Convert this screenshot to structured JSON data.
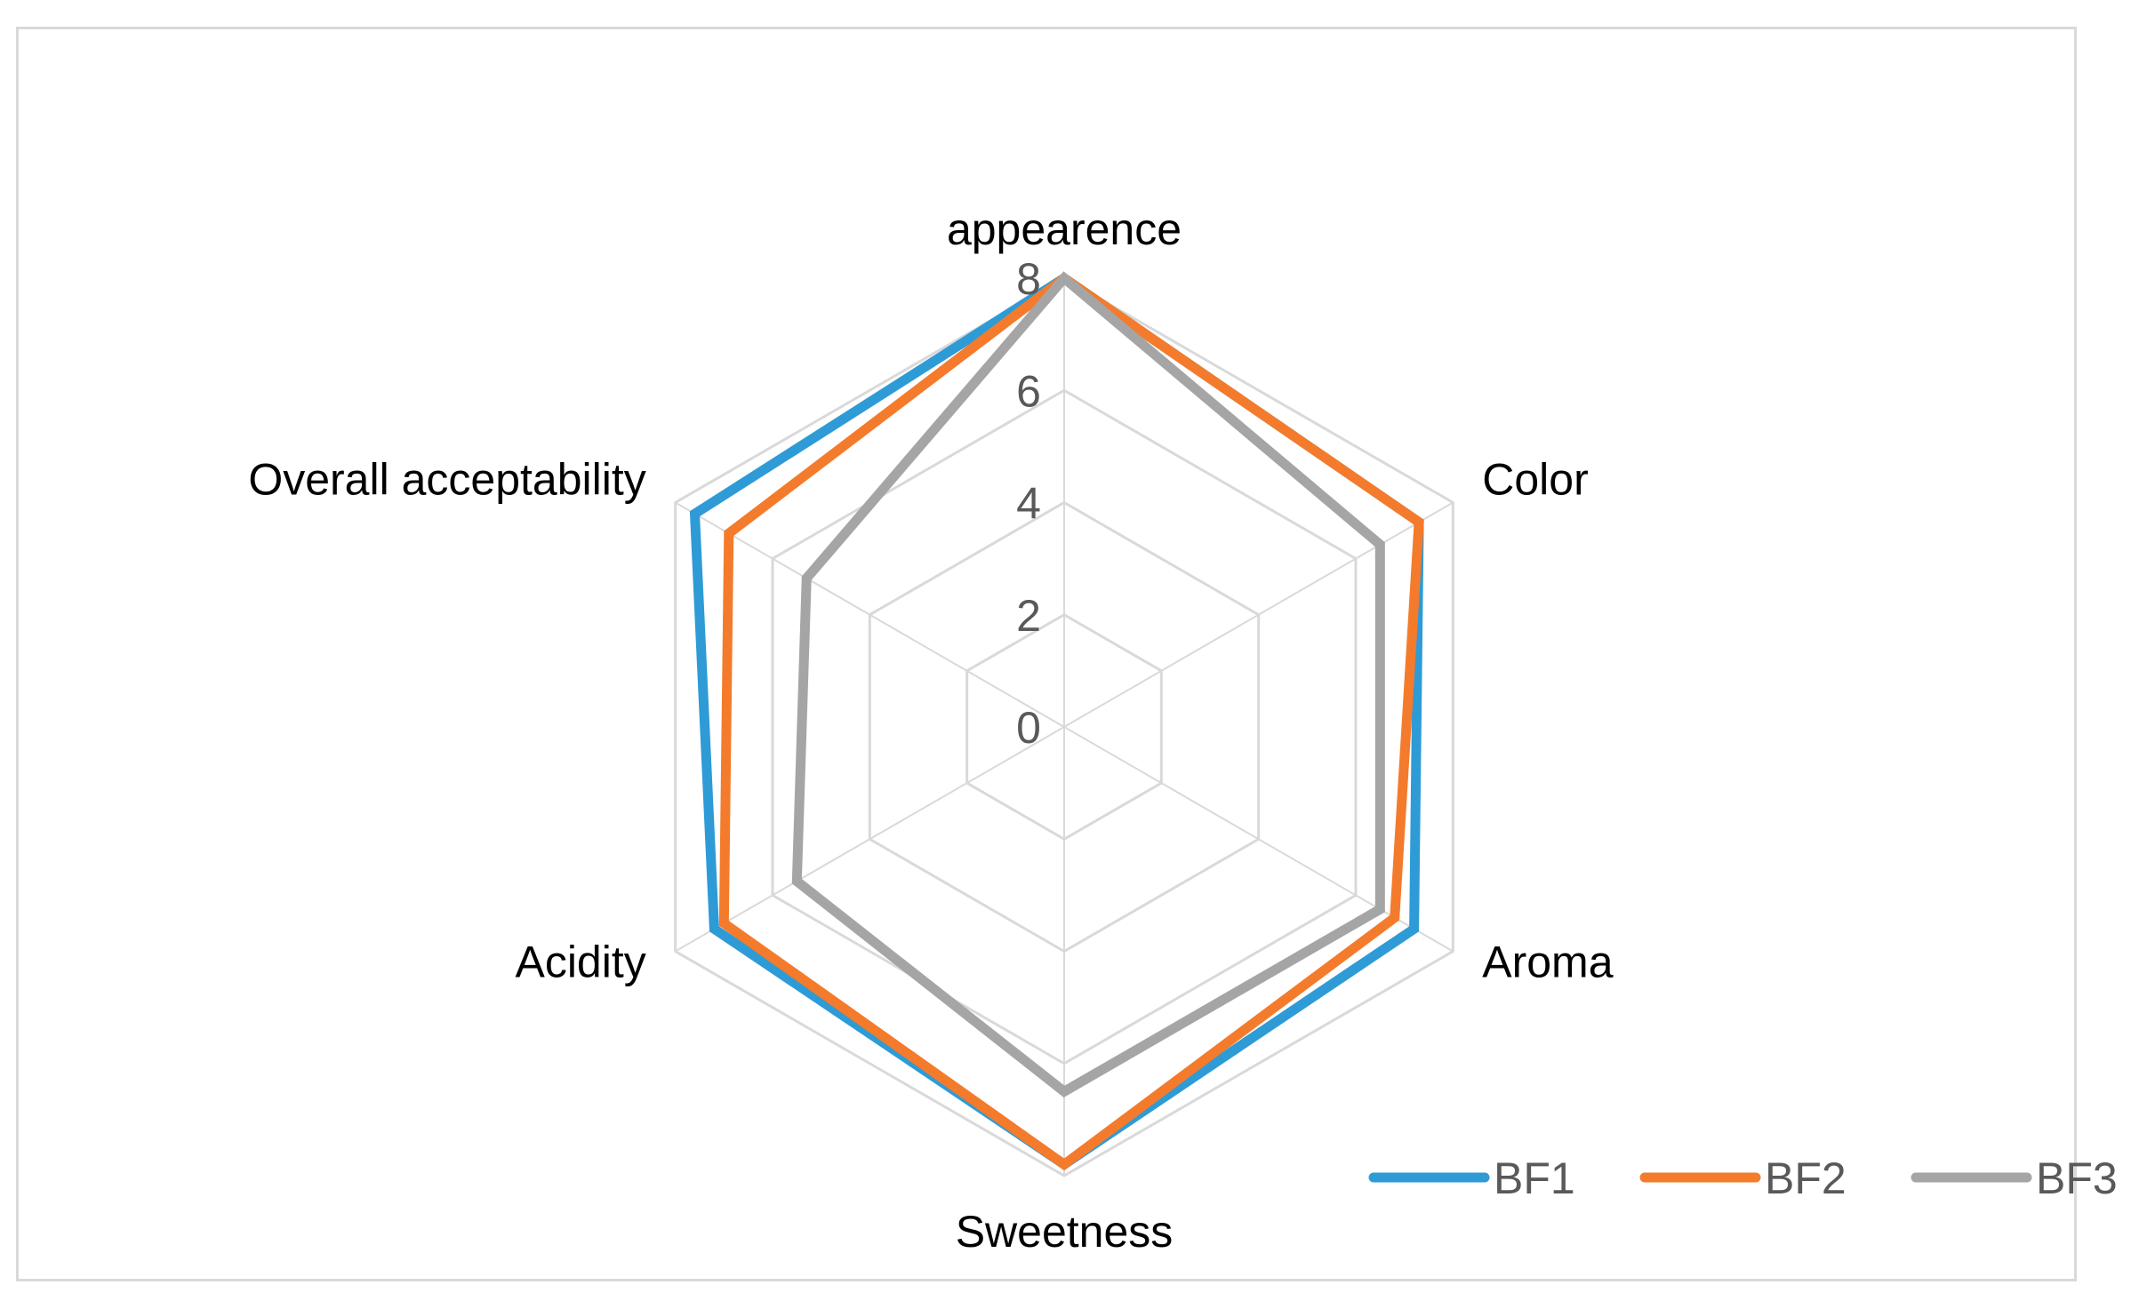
{
  "chart_data": {
    "type": "radar",
    "axes": [
      "appearence",
      "Color",
      "Aroma",
      "Sweetness",
      "Acidity",
      "Overall acceptability"
    ],
    "rlim": [
      0,
      8
    ],
    "ticks": [
      "0",
      "2",
      "4",
      "6",
      "8"
    ],
    "tick_values": [
      0,
      2,
      4,
      6,
      8
    ],
    "grid": true,
    "legend_position": "bottom-right",
    "series": [
      {
        "name": "BF1",
        "color": "#2E9BD6",
        "values": [
          8,
          7.3,
          7.2,
          7.8,
          7.2,
          7.6
        ]
      },
      {
        "name": "BF2",
        "color": "#F47B2B",
        "values": [
          8,
          7.3,
          6.8,
          7.8,
          7.0,
          6.9
        ]
      },
      {
        "name": "BF3",
        "color": "#A5A5A5",
        "values": [
          8,
          6.5,
          6.5,
          6.5,
          5.5,
          5.3
        ]
      }
    ]
  }
}
